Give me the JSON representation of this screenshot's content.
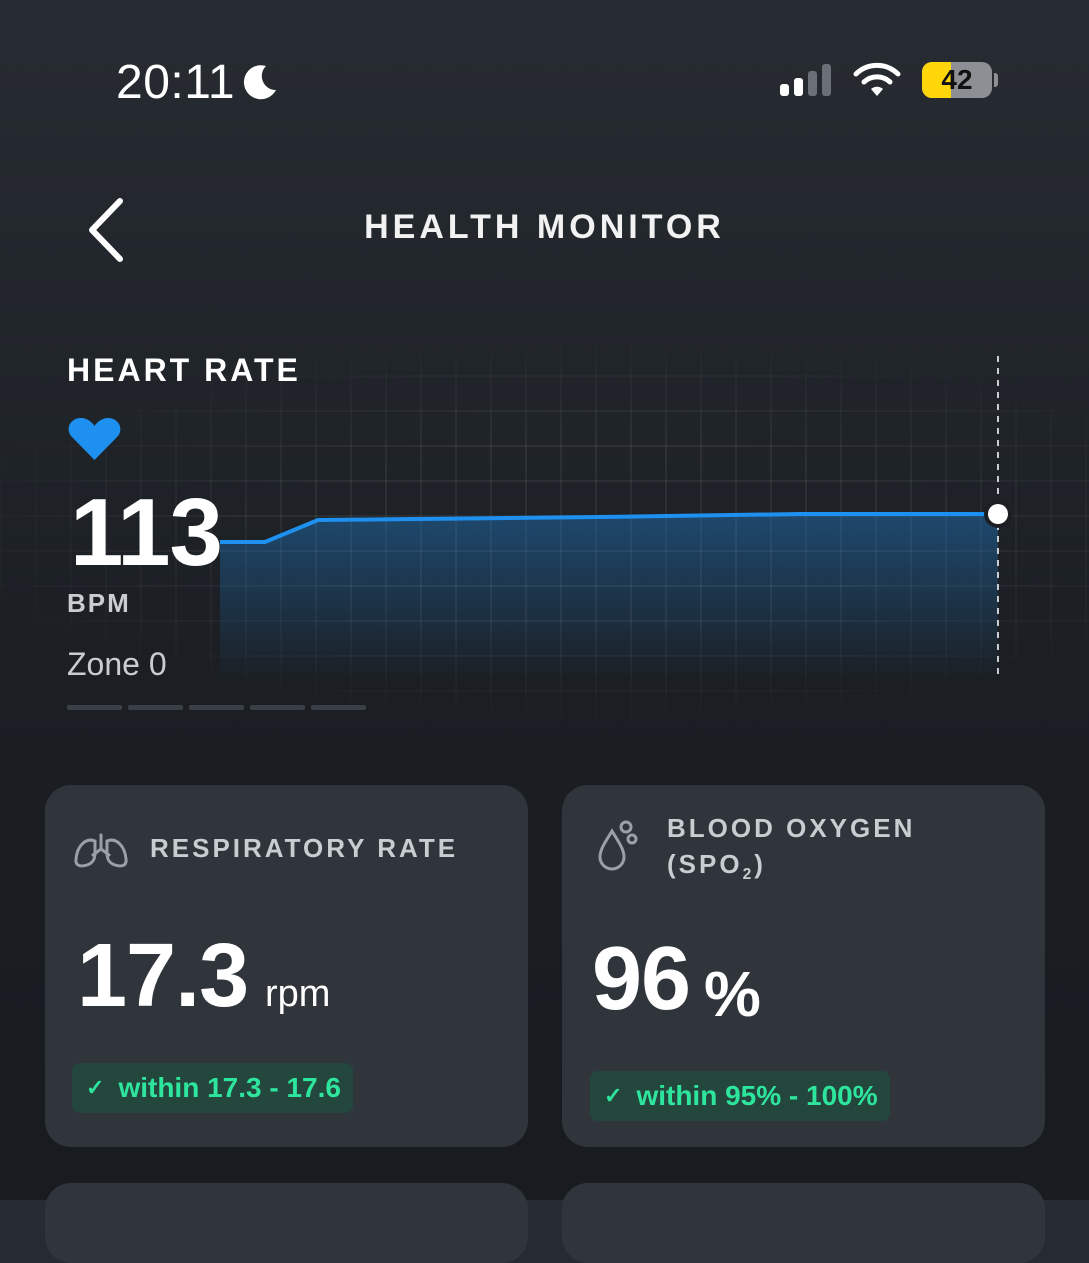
{
  "status_bar": {
    "time": "20:11",
    "signal_bars_active": 2,
    "signal_bars_total": 4,
    "battery_level": "42"
  },
  "header": {
    "title": "HEALTH MONITOR"
  },
  "heart_rate": {
    "title": "HEART RATE",
    "value": "113",
    "unit": "BPM",
    "zone": "Zone 0",
    "accent": "#1e90f0"
  },
  "cards": {
    "respiratory": {
      "title": "RESPIRATORY RATE",
      "value": "17.3",
      "unit": "rpm",
      "range": "within 17.3 - 17.6"
    },
    "blood_oxygen": {
      "title_line1": "BLOOD OXYGEN",
      "title_line2_prefix": "(SPO",
      "title_line2_sub": "2",
      "title_line2_suffix": ")",
      "value": "96",
      "unit": "%",
      "range": "within 95% - 100%"
    }
  },
  "colors": {
    "badge_bg": "#23473d",
    "badge_text": "#2ee59d",
    "card_bg": "#30353b",
    "battery_fill": "#ffd60a"
  }
}
